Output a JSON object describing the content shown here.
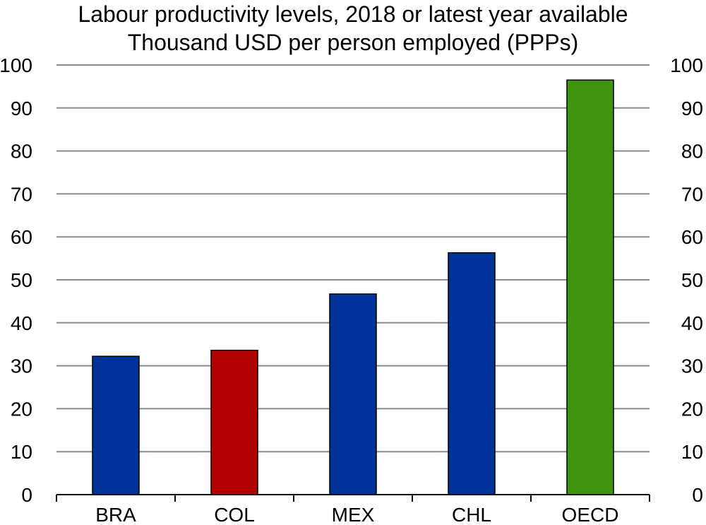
{
  "chart_data": {
    "type": "bar",
    "title": "Labour productivity levels, 2018 or latest year available",
    "subtitle": "Thousand USD per person employed (PPPs)",
    "xlabel": "",
    "ylabel": "",
    "categories": [
      "BRA",
      "COL",
      "MEX",
      "CHL",
      "OECD"
    ],
    "values": [
      32.2,
      33.6,
      46.7,
      56.3,
      96.5
    ],
    "bar_colors": [
      "#003399",
      "#b30000",
      "#003399",
      "#003399",
      "#3f930f"
    ],
    "ylim": [
      0,
      100
    ],
    "yticks": [
      0,
      10,
      20,
      30,
      40,
      50,
      60,
      70,
      80,
      90,
      100
    ],
    "yticks_right": true,
    "grid": true,
    "gridline_color": "#8c8c8c",
    "bar_edge_color": "#000000"
  }
}
